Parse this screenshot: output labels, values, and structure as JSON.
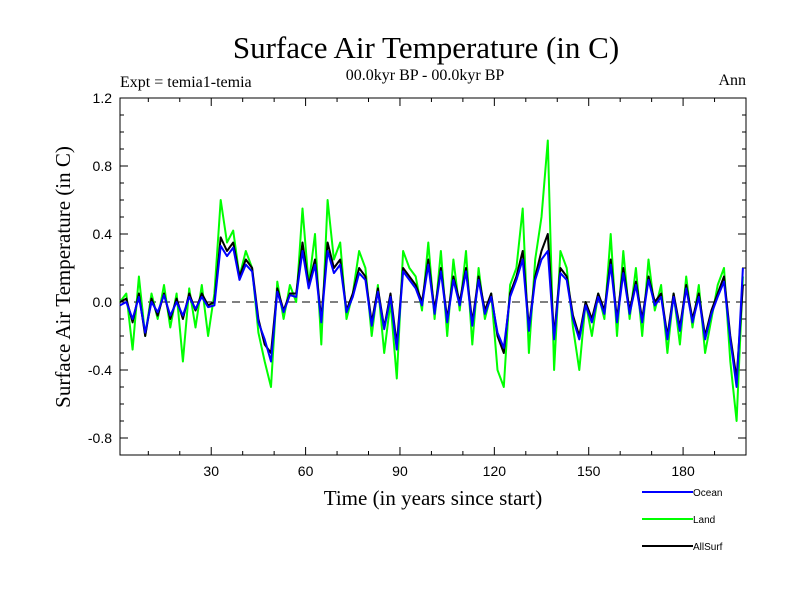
{
  "chart_data": {
    "type": "line",
    "title": "Surface Air Temperature (in C)",
    "subtitle_left": "Expt = temia1-temia",
    "subtitle_center": "00.0kyr BP - 00.0kyr BP",
    "subtitle_right": "Ann",
    "xlabel": "Time (in years since start)",
    "ylabel": "Surface Air Temperature (in C)",
    "xlim": [
      1,
      200
    ],
    "ylim": [
      -0.9,
      1.2
    ],
    "xticks": [
      30,
      60,
      90,
      120,
      150,
      180
    ],
    "xtick_labels": [
      "30",
      "60",
      "90",
      "120",
      "150",
      "180"
    ],
    "yticks": [
      -0.8,
      -0.4,
      0.0,
      0.4,
      0.8,
      1.2
    ],
    "ytick_labels": [
      "-0.8",
      "-0.4",
      "0.0",
      "0.4",
      "0.8",
      "1.2"
    ],
    "zero_line": true,
    "legend_position": "bottom-right",
    "series": [
      {
        "name": "Land",
        "color": "#00ff00",
        "points": [
          [
            1,
            0.0
          ],
          [
            3,
            0.05
          ],
          [
            5,
            -0.28
          ],
          [
            7,
            0.15
          ],
          [
            9,
            -0.2
          ],
          [
            11,
            0.05
          ],
          [
            13,
            -0.1
          ],
          [
            15,
            0.1
          ],
          [
            17,
            -0.15
          ],
          [
            19,
            0.05
          ],
          [
            21,
            -0.35
          ],
          [
            23,
            0.08
          ],
          [
            25,
            -0.15
          ],
          [
            27,
            0.1
          ],
          [
            29,
            -0.2
          ],
          [
            31,
            0.05
          ],
          [
            33,
            0.6
          ],
          [
            35,
            0.35
          ],
          [
            37,
            0.42
          ],
          [
            39,
            0.15
          ],
          [
            41,
            0.3
          ],
          [
            43,
            0.2
          ],
          [
            45,
            -0.18
          ],
          [
            47,
            -0.35
          ],
          [
            49,
            -0.5
          ],
          [
            51,
            0.12
          ],
          [
            53,
            -0.1
          ],
          [
            55,
            0.1
          ],
          [
            57,
            0.0
          ],
          [
            59,
            0.55
          ],
          [
            61,
            0.1
          ],
          [
            63,
            0.4
          ],
          [
            65,
            -0.25
          ],
          [
            67,
            0.6
          ],
          [
            69,
            0.25
          ],
          [
            71,
            0.35
          ],
          [
            73,
            -0.1
          ],
          [
            75,
            0.05
          ],
          [
            77,
            0.3
          ],
          [
            79,
            0.2
          ],
          [
            81,
            -0.2
          ],
          [
            83,
            0.1
          ],
          [
            85,
            -0.3
          ],
          [
            87,
            0.0
          ],
          [
            89,
            -0.45
          ],
          [
            91,
            0.3
          ],
          [
            93,
            0.2
          ],
          [
            95,
            0.15
          ],
          [
            97,
            -0.05
          ],
          [
            99,
            0.35
          ],
          [
            101,
            -0.1
          ],
          [
            103,
            0.3
          ],
          [
            105,
            -0.2
          ],
          [
            107,
            0.25
          ],
          [
            109,
            -0.05
          ],
          [
            111,
            0.3
          ],
          [
            113,
            -0.25
          ],
          [
            115,
            0.2
          ],
          [
            117,
            -0.1
          ],
          [
            119,
            0.05
          ],
          [
            121,
            -0.4
          ],
          [
            123,
            -0.5
          ],
          [
            125,
            0.1
          ],
          [
            127,
            0.2
          ],
          [
            129,
            0.55
          ],
          [
            131,
            -0.3
          ],
          [
            133,
            0.25
          ],
          [
            135,
            0.5
          ],
          [
            137,
            0.95
          ],
          [
            139,
            -0.4
          ],
          [
            141,
            0.3
          ],
          [
            143,
            0.2
          ],
          [
            145,
            -0.15
          ],
          [
            147,
            -0.4
          ],
          [
            149,
            0.0
          ],
          [
            151,
            -0.2
          ],
          [
            153,
            0.05
          ],
          [
            155,
            -0.1
          ],
          [
            157,
            0.4
          ],
          [
            159,
            -0.2
          ],
          [
            161,
            0.3
          ],
          [
            163,
            -0.1
          ],
          [
            165,
            0.2
          ],
          [
            167,
            -0.2
          ],
          [
            169,
            0.25
          ],
          [
            171,
            -0.05
          ],
          [
            173,
            0.1
          ],
          [
            175,
            -0.3
          ],
          [
            177,
            0.05
          ],
          [
            179,
            -0.25
          ],
          [
            181,
            0.15
          ],
          [
            183,
            -0.15
          ],
          [
            185,
            0.1
          ],
          [
            187,
            -0.3
          ],
          [
            189,
            -0.1
          ],
          [
            191,
            0.1
          ],
          [
            193,
            0.2
          ],
          [
            195,
            -0.35
          ],
          [
            197,
            -0.7
          ],
          [
            199,
            0.15
          ]
        ]
      },
      {
        "name": "AllSurf",
        "color": "#000000",
        "points": [
          [
            1,
            0.0
          ],
          [
            3,
            0.02
          ],
          [
            5,
            -0.12
          ],
          [
            7,
            0.05
          ],
          [
            9,
            -0.2
          ],
          [
            11,
            0.02
          ],
          [
            13,
            -0.08
          ],
          [
            15,
            0.05
          ],
          [
            17,
            -0.1
          ],
          [
            19,
            0.02
          ],
          [
            21,
            -0.1
          ],
          [
            23,
            0.05
          ],
          [
            25,
            -0.05
          ],
          [
            27,
            0.05
          ],
          [
            29,
            -0.02
          ],
          [
            31,
            0.0
          ],
          [
            33,
            0.38
          ],
          [
            35,
            0.3
          ],
          [
            37,
            0.35
          ],
          [
            39,
            0.15
          ],
          [
            41,
            0.25
          ],
          [
            43,
            0.2
          ],
          [
            45,
            -0.1
          ],
          [
            47,
            -0.25
          ],
          [
            49,
            -0.3
          ],
          [
            51,
            0.08
          ],
          [
            53,
            -0.05
          ],
          [
            55,
            0.05
          ],
          [
            57,
            0.05
          ],
          [
            59,
            0.35
          ],
          [
            61,
            0.1
          ],
          [
            63,
            0.25
          ],
          [
            65,
            -0.1
          ],
          [
            67,
            0.35
          ],
          [
            69,
            0.2
          ],
          [
            71,
            0.25
          ],
          [
            73,
            -0.05
          ],
          [
            75,
            0.05
          ],
          [
            77,
            0.2
          ],
          [
            79,
            0.15
          ],
          [
            81,
            -0.12
          ],
          [
            83,
            0.08
          ],
          [
            85,
            -0.15
          ],
          [
            87,
            0.05
          ],
          [
            89,
            -0.25
          ],
          [
            91,
            0.2
          ],
          [
            93,
            0.15
          ],
          [
            95,
            0.1
          ],
          [
            97,
            0.0
          ],
          [
            99,
            0.25
          ],
          [
            101,
            -0.05
          ],
          [
            103,
            0.2
          ],
          [
            105,
            -0.1
          ],
          [
            107,
            0.15
          ],
          [
            109,
            0.0
          ],
          [
            111,
            0.2
          ],
          [
            113,
            -0.12
          ],
          [
            115,
            0.15
          ],
          [
            117,
            -0.05
          ],
          [
            119,
            0.05
          ],
          [
            121,
            -0.2
          ],
          [
            123,
            -0.3
          ],
          [
            125,
            0.05
          ],
          [
            127,
            0.15
          ],
          [
            129,
            0.3
          ],
          [
            131,
            -0.15
          ],
          [
            133,
            0.15
          ],
          [
            135,
            0.3
          ],
          [
            137,
            0.4
          ],
          [
            139,
            -0.2
          ],
          [
            141,
            0.2
          ],
          [
            143,
            0.15
          ],
          [
            145,
            -0.08
          ],
          [
            147,
            -0.2
          ],
          [
            149,
            0.0
          ],
          [
            151,
            -0.1
          ],
          [
            153,
            0.05
          ],
          [
            155,
            -0.05
          ],
          [
            157,
            0.25
          ],
          [
            159,
            -0.1
          ],
          [
            161,
            0.2
          ],
          [
            163,
            -0.05
          ],
          [
            165,
            0.12
          ],
          [
            167,
            -0.1
          ],
          [
            169,
            0.15
          ],
          [
            171,
            0.0
          ],
          [
            173,
            0.05
          ],
          [
            175,
            -0.2
          ],
          [
            177,
            0.05
          ],
          [
            179,
            -0.15
          ],
          [
            181,
            0.1
          ],
          [
            183,
            -0.1
          ],
          [
            185,
            0.05
          ],
          [
            187,
            -0.2
          ],
          [
            189,
            -0.05
          ],
          [
            191,
            0.05
          ],
          [
            193,
            0.15
          ],
          [
            195,
            -0.2
          ],
          [
            197,
            -0.45
          ],
          [
            199,
            0.1
          ]
        ]
      },
      {
        "name": "Ocean",
        "color": "#0000ff",
        "points": [
          [
            1,
            -0.02
          ],
          [
            3,
            0.0
          ],
          [
            5,
            -0.1
          ],
          [
            7,
            0.03
          ],
          [
            9,
            -0.18
          ],
          [
            11,
            0.0
          ],
          [
            13,
            -0.06
          ],
          [
            15,
            0.04
          ],
          [
            17,
            -0.08
          ],
          [
            19,
            0.0
          ],
          [
            21,
            -0.08
          ],
          [
            23,
            0.03
          ],
          [
            25,
            -0.04
          ],
          [
            27,
            0.03
          ],
          [
            29,
            -0.03
          ],
          [
            31,
            -0.02
          ],
          [
            33,
            0.33
          ],
          [
            35,
            0.27
          ],
          [
            37,
            0.32
          ],
          [
            39,
            0.13
          ],
          [
            41,
            0.22
          ],
          [
            43,
            0.18
          ],
          [
            45,
            -0.12
          ],
          [
            47,
            -0.22
          ],
          [
            49,
            -0.35
          ],
          [
            51,
            0.06
          ],
          [
            53,
            -0.06
          ],
          [
            55,
            0.04
          ],
          [
            57,
            0.03
          ],
          [
            59,
            0.3
          ],
          [
            61,
            0.08
          ],
          [
            63,
            0.22
          ],
          [
            65,
            -0.12
          ],
          [
            67,
            0.3
          ],
          [
            69,
            0.17
          ],
          [
            71,
            0.22
          ],
          [
            73,
            -0.06
          ],
          [
            75,
            0.03
          ],
          [
            77,
            0.17
          ],
          [
            79,
            0.13
          ],
          [
            81,
            -0.14
          ],
          [
            83,
            0.06
          ],
          [
            85,
            -0.16
          ],
          [
            87,
            0.03
          ],
          [
            89,
            -0.28
          ],
          [
            91,
            0.18
          ],
          [
            93,
            0.13
          ],
          [
            95,
            0.08
          ],
          [
            97,
            -0.02
          ],
          [
            99,
            0.22
          ],
          [
            101,
            -0.07
          ],
          [
            103,
            0.18
          ],
          [
            105,
            -0.12
          ],
          [
            107,
            0.13
          ],
          [
            109,
            -0.02
          ],
          [
            111,
            0.18
          ],
          [
            113,
            -0.14
          ],
          [
            115,
            0.13
          ],
          [
            117,
            -0.07
          ],
          [
            119,
            0.03
          ],
          [
            121,
            -0.18
          ],
          [
            123,
            -0.27
          ],
          [
            125,
            0.03
          ],
          [
            127,
            0.13
          ],
          [
            129,
            0.25
          ],
          [
            131,
            -0.17
          ],
          [
            133,
            0.13
          ],
          [
            135,
            0.25
          ],
          [
            137,
            0.3
          ],
          [
            139,
            -0.22
          ],
          [
            141,
            0.17
          ],
          [
            143,
            0.13
          ],
          [
            145,
            -0.1
          ],
          [
            147,
            -0.22
          ],
          [
            149,
            -0.02
          ],
          [
            151,
            -0.12
          ],
          [
            153,
            0.03
          ],
          [
            155,
            -0.07
          ],
          [
            157,
            0.22
          ],
          [
            159,
            -0.12
          ],
          [
            161,
            0.17
          ],
          [
            163,
            -0.07
          ],
          [
            165,
            0.1
          ],
          [
            167,
            -0.12
          ],
          [
            169,
            0.13
          ],
          [
            171,
            -0.02
          ],
          [
            173,
            0.03
          ],
          [
            175,
            -0.22
          ],
          [
            177,
            0.03
          ],
          [
            179,
            -0.17
          ],
          [
            181,
            0.08
          ],
          [
            183,
            -0.12
          ],
          [
            185,
            0.03
          ],
          [
            187,
            -0.22
          ],
          [
            189,
            -0.07
          ],
          [
            191,
            0.03
          ],
          [
            193,
            0.12
          ],
          [
            195,
            -0.22
          ],
          [
            197,
            -0.5
          ],
          [
            199,
            0.2
          ]
        ]
      }
    ],
    "legend": [
      {
        "name": "Ocean",
        "color": "#0000ff"
      },
      {
        "name": "Land",
        "color": "#00ff00"
      },
      {
        "name": "AllSurf",
        "color": "#000000"
      }
    ]
  }
}
